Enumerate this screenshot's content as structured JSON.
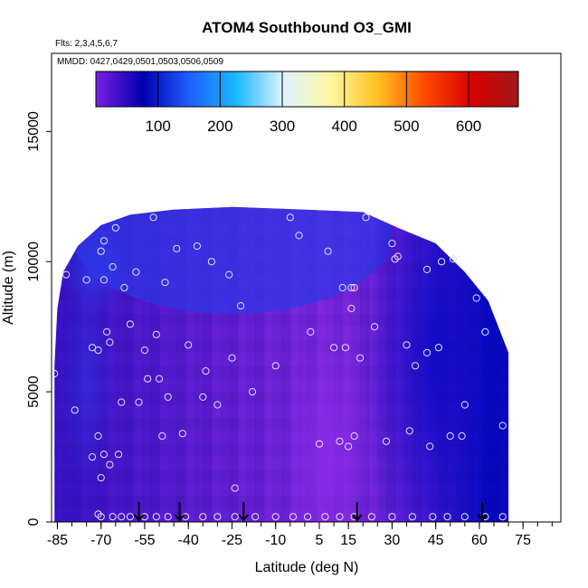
{
  "chart_data": {
    "type": "heatmap",
    "title": "ATOM4 Southbound O3_GMI",
    "subtitle_flights": "Flts: 2,3,4,5,6,7",
    "subtitle_dates": "MMDD: 0427,0429,0501,0503,0506,0509",
    "xlabel": "Latitude (deg N)",
    "ylabel": "Altitude (m)",
    "xlim": [
      -87,
      88
    ],
    "ylim": [
      0,
      18000
    ],
    "x_ticks": [
      -85,
      -70,
      -55,
      -40,
      -25,
      -10,
      5,
      15,
      30,
      45,
      60,
      75
    ],
    "x_minor_step": 5,
    "y_ticks": [
      0,
      5000,
      10000,
      15000
    ],
    "grid": false,
    "colorbar": {
      "range": [
        0,
        680
      ],
      "ticks": [
        100,
        200,
        300,
        400,
        500,
        600
      ],
      "colors": [
        "#7a1fe6",
        "#0000b0",
        "#1e5fff",
        "#1ab8ff",
        "#dff3ff",
        "#fff7a0",
        "#ffc020",
        "#ff4a00",
        "#d80000",
        "#a01818"
      ]
    },
    "field_colors": {
      "low": "#3c14cc",
      "mid": "#6a22dc",
      "high": "#8a2be8",
      "upper_deep_blue": "#0a0ac8",
      "upper_blue": "#2c38e8"
    },
    "observation_points": [
      [
        -86,
        5700
      ],
      [
        -82,
        9500
      ],
      [
        -79,
        4300
      ],
      [
        -75,
        9300
      ],
      [
        -73,
        6700
      ],
      [
        -73,
        2500
      ],
      [
        -71,
        6600
      ],
      [
        -71,
        3300
      ],
      [
        -70,
        10400
      ],
      [
        -70,
        1700
      ],
      [
        -69,
        10800
      ],
      [
        -69,
        9300
      ],
      [
        -69,
        2600
      ],
      [
        -68,
        7300
      ],
      [
        -67,
        2200
      ],
      [
        -67,
        6900
      ],
      [
        -66,
        9800
      ],
      [
        -65,
        11300
      ],
      [
        -64,
        2600
      ],
      [
        -63,
        4600
      ],
      [
        -62,
        9000
      ],
      [
        -60,
        7600
      ],
      [
        -58,
        9600
      ],
      [
        -57,
        4600
      ],
      [
        -55,
        6600
      ],
      [
        -54,
        5500
      ],
      [
        -52,
        11700
      ],
      [
        -51,
        7200
      ],
      [
        -50,
        5500
      ],
      [
        -49,
        3300
      ],
      [
        -48,
        9200
      ],
      [
        -47,
        4800
      ],
      [
        -44,
        10500
      ],
      [
        -42,
        3400
      ],
      [
        -40,
        6800
      ],
      [
        -37,
        10600
      ],
      [
        -35,
        4800
      ],
      [
        -34,
        5800
      ],
      [
        -32,
        10000
      ],
      [
        -30,
        4500
      ],
      [
        -26,
        9500
      ],
      [
        -25,
        6300
      ],
      [
        -24,
        1300
      ],
      [
        -22,
        8300
      ],
      [
        -18,
        5000
      ],
      [
        -10,
        6000
      ],
      [
        -5,
        11700
      ],
      [
        -2,
        11000
      ],
      [
        2,
        7300
      ],
      [
        5,
        3000
      ],
      [
        8,
        10400
      ],
      [
        10,
        6700
      ],
      [
        12,
        3100
      ],
      [
        13,
        9000
      ],
      [
        14,
        6700
      ],
      [
        15,
        2900
      ],
      [
        16,
        9000
      ],
      [
        16,
        8200
      ],
      [
        17,
        3300
      ],
      [
        17,
        9000
      ],
      [
        19,
        6300
      ],
      [
        21,
        11700
      ],
      [
        24,
        7500
      ],
      [
        28,
        3100
      ],
      [
        30,
        10700
      ],
      [
        31,
        10100
      ],
      [
        32,
        10200
      ],
      [
        35,
        6800
      ],
      [
        36,
        3500
      ],
      [
        38,
        6000
      ],
      [
        42,
        6500
      ],
      [
        42,
        9700
      ],
      [
        43,
        2900
      ],
      [
        46,
        6700
      ],
      [
        47,
        10000
      ],
      [
        50,
        3300
      ],
      [
        51,
        10100
      ],
      [
        54,
        3300
      ],
      [
        55,
        4500
      ],
      [
        59,
        8600
      ],
      [
        62,
        7300
      ],
      [
        68,
        3700
      ],
      [
        -71,
        300
      ],
      [
        -70,
        200
      ],
      [
        -66,
        200
      ],
      [
        -63,
        200
      ],
      [
        -60,
        200
      ],
      [
        -55,
        200
      ],
      [
        -51,
        200
      ],
      [
        -47,
        200
      ],
      [
        -41,
        200
      ],
      [
        -35,
        200
      ],
      [
        -30,
        200
      ],
      [
        -24,
        200
      ],
      [
        -17,
        200
      ],
      [
        -10,
        200
      ],
      [
        -4,
        200
      ],
      [
        1,
        200
      ],
      [
        7,
        200
      ],
      [
        12,
        200
      ],
      [
        17,
        200
      ],
      [
        23,
        200
      ],
      [
        30,
        200
      ],
      [
        37,
        200
      ],
      [
        44,
        200
      ],
      [
        49,
        200
      ],
      [
        55,
        200
      ],
      [
        62,
        200
      ],
      [
        68,
        200
      ]
    ],
    "flight_markers_lat": [
      -57,
      -43,
      -21,
      18,
      61
    ]
  }
}
